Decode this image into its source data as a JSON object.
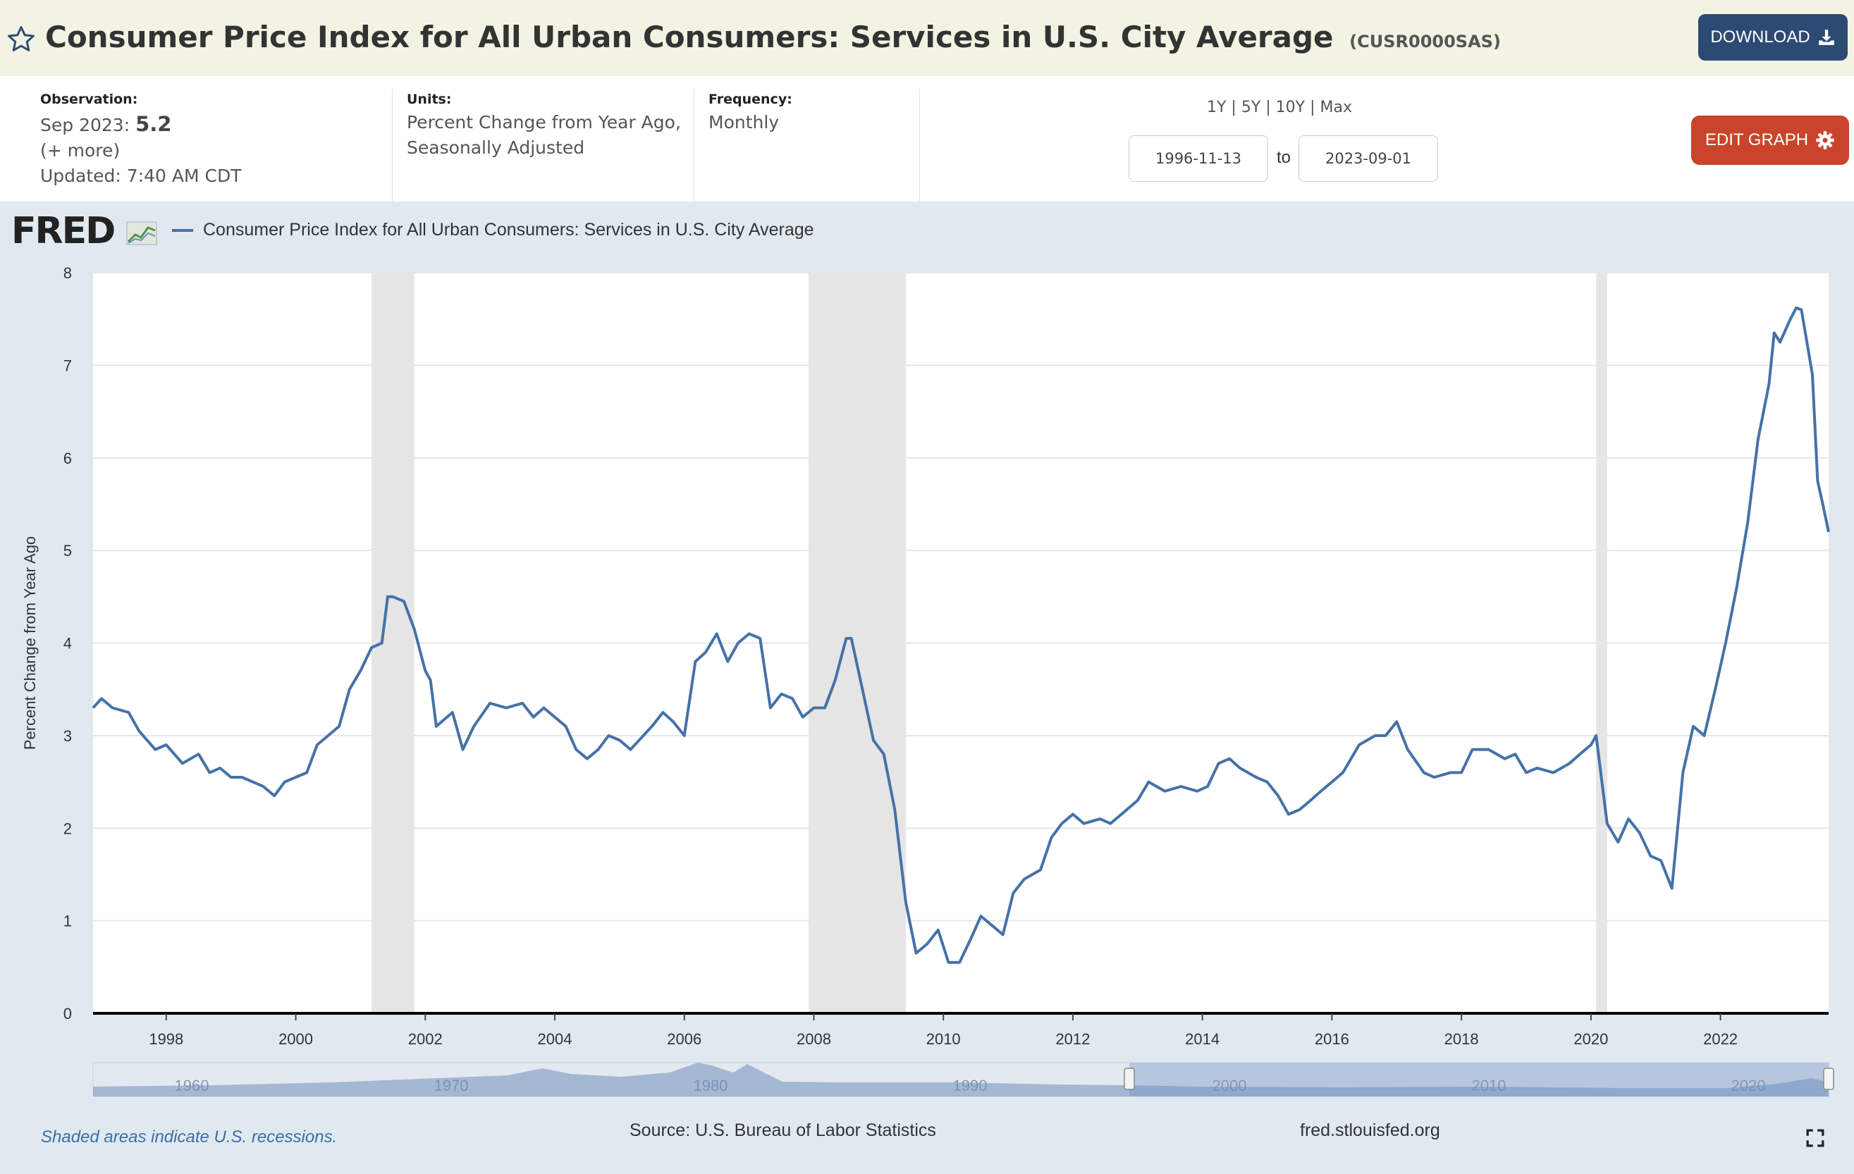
{
  "header": {
    "title": "Consumer Price Index for All Urban Consumers: Services in U.S. City Average",
    "series_id": "(CUSR0000SAS)",
    "download_label": "DOWNLOAD"
  },
  "meta": {
    "observation_label": "Observation:",
    "observation_period": "Sep 2023:",
    "observation_value": "5.2",
    "more": "(+ more)",
    "updated": "Updated: 7:40 AM CDT",
    "units_label": "Units:",
    "units_line1": "Percent Change from Year Ago,",
    "units_line2": "Seasonally Adjusted",
    "frequency_label": "Frequency:",
    "frequency_value": "Monthly"
  },
  "range": {
    "links": "1Y | 5Y | 10Y | Max",
    "start": "1996-11-13",
    "to": "to",
    "end": "2023-09-01",
    "edit_label": "EDIT GRAPH"
  },
  "footer": {
    "recession_note": "Shaded areas indicate U.S. recessions.",
    "source": "Source: U.S. Bureau of Labor Statistics",
    "site": "fred.stlouisfed.org"
  },
  "colors": {
    "line": "#4572a7",
    "recession": "#e5e5e5",
    "download": "#2c4a73",
    "edit": "#c9442b"
  },
  "chart_data": {
    "type": "line",
    "logo": "FRED",
    "ylabel": "Percent Change from Year Ago",
    "ylim": [
      0,
      8
    ],
    "yticks": [
      0,
      1,
      2,
      3,
      4,
      5,
      6,
      7,
      8
    ],
    "xlim": [
      1996.87,
      2023.67
    ],
    "xticks": [
      1998,
      2000,
      2002,
      2004,
      2006,
      2008,
      2010,
      2012,
      2014,
      2016,
      2018,
      2020,
      2022
    ],
    "grid": true,
    "legend_position": "top-left",
    "recessions": [
      [
        2001.17,
        2001.83
      ],
      [
        2007.92,
        2009.42
      ],
      [
        2020.08,
        2020.25
      ]
    ],
    "navigator_ticks": [
      1960,
      1970,
      1980,
      1990,
      2000,
      2010,
      2020
    ],
    "series": [
      {
        "name": "Consumer Price Index for All Urban Consumers: Services in U.S. City Average",
        "points": [
          [
            1996.87,
            3.3
          ],
          [
            1997.0,
            3.4
          ],
          [
            1997.17,
            3.3
          ],
          [
            1997.42,
            3.25
          ],
          [
            1997.58,
            3.05
          ],
          [
            1997.83,
            2.85
          ],
          [
            1998.0,
            2.9
          ],
          [
            1998.25,
            2.7
          ],
          [
            1998.5,
            2.8
          ],
          [
            1998.67,
            2.6
          ],
          [
            1998.83,
            2.65
          ],
          [
            1999.0,
            2.55
          ],
          [
            1999.17,
            2.55
          ],
          [
            1999.5,
            2.45
          ],
          [
            1999.67,
            2.35
          ],
          [
            1999.83,
            2.5
          ],
          [
            2000.0,
            2.55
          ],
          [
            2000.17,
            2.6
          ],
          [
            2000.33,
            2.9
          ],
          [
            2000.5,
            3.0
          ],
          [
            2000.67,
            3.1
          ],
          [
            2000.83,
            3.5
          ],
          [
            2001.0,
            3.7
          ],
          [
            2001.17,
            3.95
          ],
          [
            2001.33,
            4.0
          ],
          [
            2001.42,
            4.5
          ],
          [
            2001.5,
            4.5
          ],
          [
            2001.67,
            4.45
          ],
          [
            2001.83,
            4.15
          ],
          [
            2002.0,
            3.7
          ],
          [
            2002.08,
            3.6
          ],
          [
            2002.17,
            3.1
          ],
          [
            2002.42,
            3.25
          ],
          [
            2002.58,
            2.85
          ],
          [
            2002.75,
            3.1
          ],
          [
            2003.0,
            3.35
          ],
          [
            2003.25,
            3.3
          ],
          [
            2003.5,
            3.35
          ],
          [
            2003.67,
            3.2
          ],
          [
            2003.83,
            3.3
          ],
          [
            2004.0,
            3.2
          ],
          [
            2004.17,
            3.1
          ],
          [
            2004.33,
            2.85
          ],
          [
            2004.5,
            2.75
          ],
          [
            2004.67,
            2.85
          ],
          [
            2004.83,
            3.0
          ],
          [
            2005.0,
            2.95
          ],
          [
            2005.17,
            2.85
          ],
          [
            2005.5,
            3.1
          ],
          [
            2005.67,
            3.25
          ],
          [
            2005.83,
            3.15
          ],
          [
            2006.0,
            3.0
          ],
          [
            2006.17,
            3.8
          ],
          [
            2006.33,
            3.9
          ],
          [
            2006.5,
            4.1
          ],
          [
            2006.67,
            3.8
          ],
          [
            2006.83,
            4.0
          ],
          [
            2007.0,
            4.1
          ],
          [
            2007.17,
            4.05
          ],
          [
            2007.33,
            3.3
          ],
          [
            2007.5,
            3.45
          ],
          [
            2007.67,
            3.4
          ],
          [
            2007.83,
            3.2
          ],
          [
            2008.0,
            3.3
          ],
          [
            2008.17,
            3.3
          ],
          [
            2008.33,
            3.6
          ],
          [
            2008.5,
            4.05
          ],
          [
            2008.58,
            4.05
          ],
          [
            2008.75,
            3.5
          ],
          [
            2008.92,
            2.95
          ],
          [
            2009.08,
            2.8
          ],
          [
            2009.25,
            2.2
          ],
          [
            2009.42,
            1.2
          ],
          [
            2009.58,
            0.65
          ],
          [
            2009.75,
            0.75
          ],
          [
            2009.92,
            0.9
          ],
          [
            2010.08,
            0.55
          ],
          [
            2010.25,
            0.55
          ],
          [
            2010.42,
            0.8
          ],
          [
            2010.58,
            1.05
          ],
          [
            2010.75,
            0.95
          ],
          [
            2010.92,
            0.85
          ],
          [
            2011.08,
            1.3
          ],
          [
            2011.25,
            1.45
          ],
          [
            2011.5,
            1.55
          ],
          [
            2011.67,
            1.9
          ],
          [
            2011.83,
            2.05
          ],
          [
            2012.0,
            2.15
          ],
          [
            2012.17,
            2.05
          ],
          [
            2012.42,
            2.1
          ],
          [
            2012.58,
            2.05
          ],
          [
            2012.75,
            2.15
          ],
          [
            2013.0,
            2.3
          ],
          [
            2013.17,
            2.5
          ],
          [
            2013.42,
            2.4
          ],
          [
            2013.67,
            2.45
          ],
          [
            2013.92,
            2.4
          ],
          [
            2014.08,
            2.45
          ],
          [
            2014.25,
            2.7
          ],
          [
            2014.42,
            2.75
          ],
          [
            2014.58,
            2.65
          ],
          [
            2014.83,
            2.55
          ],
          [
            2015.0,
            2.5
          ],
          [
            2015.17,
            2.35
          ],
          [
            2015.33,
            2.15
          ],
          [
            2015.5,
            2.2
          ],
          [
            2015.67,
            2.3
          ],
          [
            2015.83,
            2.4
          ],
          [
            2016.0,
            2.5
          ],
          [
            2016.17,
            2.6
          ],
          [
            2016.42,
            2.9
          ],
          [
            2016.67,
            3.0
          ],
          [
            2016.83,
            3.0
          ],
          [
            2017.0,
            3.15
          ],
          [
            2017.17,
            2.85
          ],
          [
            2017.42,
            2.6
          ],
          [
            2017.58,
            2.55
          ],
          [
            2017.83,
            2.6
          ],
          [
            2018.0,
            2.6
          ],
          [
            2018.17,
            2.85
          ],
          [
            2018.42,
            2.85
          ],
          [
            2018.67,
            2.75
          ],
          [
            2018.83,
            2.8
          ],
          [
            2019.0,
            2.6
          ],
          [
            2019.17,
            2.65
          ],
          [
            2019.42,
            2.6
          ],
          [
            2019.67,
            2.7
          ],
          [
            2019.83,
            2.8
          ],
          [
            2020.0,
            2.9
          ],
          [
            2020.08,
            3.0
          ],
          [
            2020.25,
            2.05
          ],
          [
            2020.42,
            1.85
          ],
          [
            2020.58,
            2.1
          ],
          [
            2020.75,
            1.95
          ],
          [
            2020.92,
            1.7
          ],
          [
            2021.08,
            1.65
          ],
          [
            2021.25,
            1.35
          ],
          [
            2021.42,
            2.6
          ],
          [
            2021.58,
            3.1
          ],
          [
            2021.75,
            3.0
          ],
          [
            2021.92,
            3.5
          ],
          [
            2022.08,
            4.0
          ],
          [
            2022.25,
            4.6
          ],
          [
            2022.42,
            5.3
          ],
          [
            2022.58,
            6.2
          ],
          [
            2022.75,
            6.8
          ],
          [
            2022.83,
            7.35
          ],
          [
            2022.92,
            7.25
          ],
          [
            2023.08,
            7.5
          ],
          [
            2023.17,
            7.62
          ],
          [
            2023.25,
            7.6
          ],
          [
            2023.42,
            6.9
          ],
          [
            2023.5,
            5.75
          ],
          [
            2023.58,
            5.5
          ],
          [
            2023.67,
            5.2
          ]
        ]
      }
    ]
  }
}
